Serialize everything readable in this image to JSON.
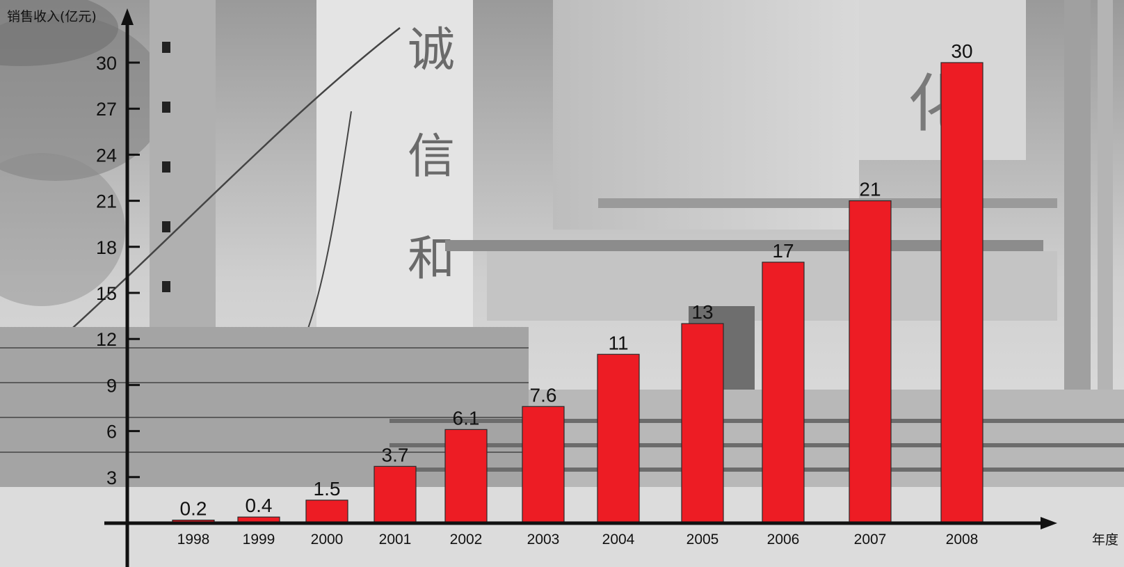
{
  "chart_data": {
    "type": "bar",
    "title": "",
    "ylabel": "销售收入(亿元)",
    "xlabel": "年度",
    "categories": [
      "1998",
      "1999",
      "2000",
      "2001",
      "2002",
      "2003",
      "2004",
      "2005",
      "2006",
      "2007",
      "2008"
    ],
    "values": [
      0.2,
      0.4,
      1.5,
      3.7,
      6.1,
      7.6,
      11,
      13,
      17,
      21,
      30
    ],
    "data_labels": [
      "0.2",
      "0.4",
      "1.5",
      "3.7",
      "6.1",
      "7.6",
      "11",
      "13",
      "17",
      "21",
      "30"
    ],
    "yticks": [
      3,
      6,
      9,
      12,
      15,
      18,
      21,
      24,
      27,
      30
    ],
    "ylim": [
      0,
      30
    ],
    "grid": false,
    "legend": "none",
    "background": "grayscale industrial factory photo with banner characters 诚 信 和",
    "colors": {
      "bar": "#ed1c24",
      "axis": "#111111"
    }
  }
}
